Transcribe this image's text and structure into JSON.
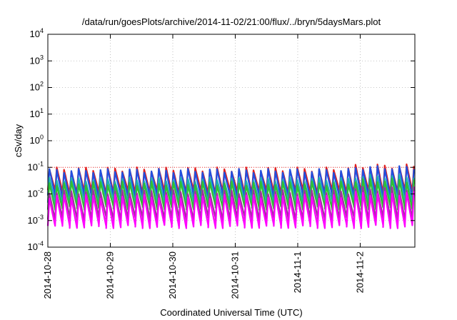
{
  "chart_data": {
    "type": "line",
    "title": "/data/run/goesPlots/archive/2014-11-02/21:00/flux/../bryn/5daysMars.plot",
    "xlabel": "Coordinated Universal Time (UTC)",
    "ylabel": "cSv/day",
    "x_range": [
      "2014-10-28",
      "2014-11-02 21:00"
    ],
    "xticks": [
      "2014-10-28",
      "2014-10-29",
      "2014-10-30",
      "2014-10-31",
      "2014-11-1",
      "2014-11-2"
    ],
    "y_scale": "log",
    "ylim": [
      0.0001,
      10000
    ],
    "yticks": [
      {
        "base": "10",
        "exp": "4"
      },
      {
        "base": "10",
        "exp": "3"
      },
      {
        "base": "10",
        "exp": "2"
      },
      {
        "base": "10",
        "exp": "1"
      },
      {
        "base": "10",
        "exp": "0"
      },
      {
        "base": "10",
        "exp": "-1"
      },
      {
        "base": "10",
        "exp": "-2"
      },
      {
        "base": "10",
        "exp": "-3"
      },
      {
        "base": "10",
        "exp": "-4"
      }
    ],
    "grid": true,
    "reference_line": {
      "y": 0.1,
      "color": "#ff3333",
      "style": "dotted"
    },
    "sawtooth_period_hours": 2.8,
    "series": [
      {
        "color": "#e02020",
        "peak": 0.085,
        "trough": 0.012
      },
      {
        "color": "#2050e0",
        "peak": 0.075,
        "trough": 0.008
      },
      {
        "color": "#20b0b0",
        "peak": 0.035,
        "trough": 0.005
      },
      {
        "color": "#30c030",
        "peak": 0.025,
        "trough": 0.003
      },
      {
        "color": "#a030a0",
        "peak": 0.012,
        "trough": 0.0012
      },
      {
        "color": "#ff00ff",
        "peak": 0.008,
        "trough": 0.0006
      }
    ]
  }
}
